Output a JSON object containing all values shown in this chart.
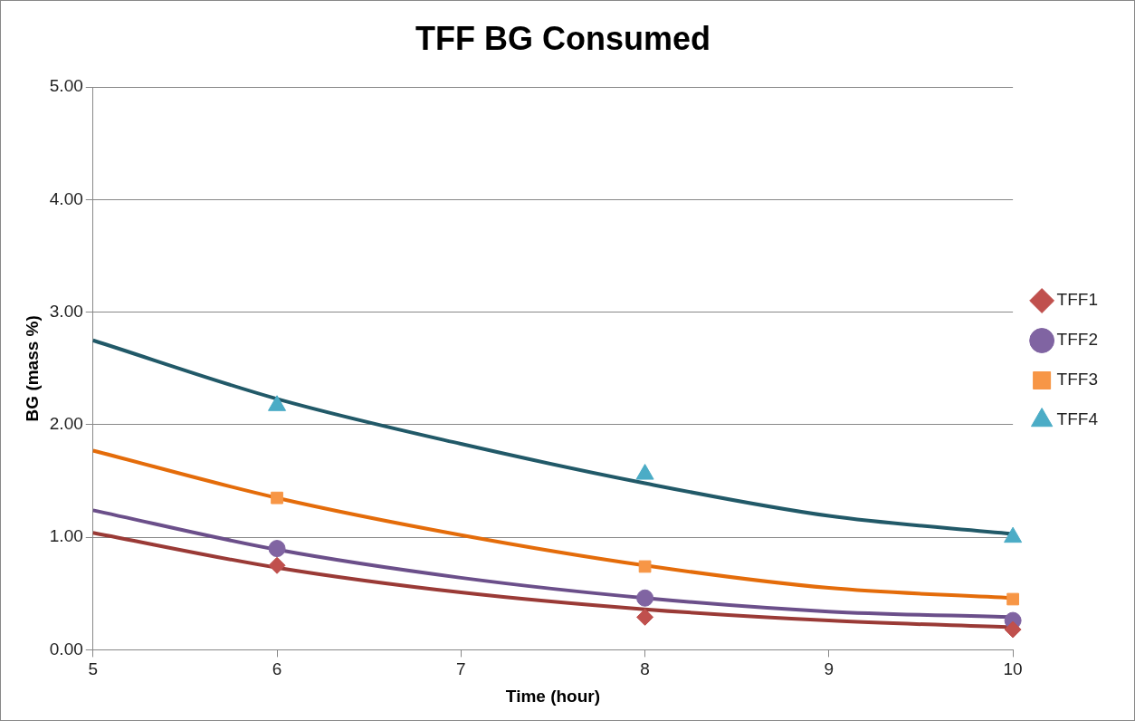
{
  "chart_data": {
    "type": "scatter",
    "title": "TFF BG Consumed",
    "xlabel": "Time (hour)",
    "ylabel": "BG (mass %)",
    "xlim": [
      5,
      10
    ],
    "xticks": [
      5,
      6,
      7,
      8,
      9,
      10
    ],
    "ylim": [
      0,
      5
    ],
    "yticks": [
      {
        "value": 0,
        "label": "0.00"
      },
      {
        "value": 1,
        "label": "1.00"
      },
      {
        "value": 2,
        "label": "2.00"
      },
      {
        "value": 3,
        "label": "3.00"
      },
      {
        "value": 4,
        "label": "4.00"
      },
      {
        "value": 5,
        "label": "5.00"
      }
    ],
    "grid": "y",
    "legend": "right",
    "series": [
      {
        "type": "line",
        "marker": "none",
        "color": "#9a3a36",
        "x": [
          5,
          6,
          7,
          8,
          9,
          10
        ],
        "values": [
          1.04,
          0.73,
          0.51,
          0.36,
          0.26,
          0.2
        ]
      },
      {
        "type": "line",
        "marker": "none",
        "color": "#6b4f8a",
        "x": [
          5,
          6,
          7,
          8,
          9,
          10
        ],
        "values": [
          1.24,
          0.89,
          0.64,
          0.46,
          0.34,
          0.29
        ]
      },
      {
        "type": "line",
        "marker": "none",
        "color": "#e46c0a",
        "x": [
          5,
          6,
          7,
          8,
          9,
          10
        ],
        "values": [
          1.77,
          1.35,
          1.02,
          0.75,
          0.55,
          0.46
        ]
      },
      {
        "type": "line",
        "marker": "none",
        "color": "#215968",
        "x": [
          5,
          6,
          7,
          8,
          9,
          10
        ],
        "values": [
          2.75,
          2.23,
          1.83,
          1.48,
          1.19,
          1.03
        ]
      },
      {
        "name": "TFF1",
        "marker": "diamond",
        "color": "#c0504d",
        "x": [
          6,
          8,
          10
        ],
        "values": [
          0.75,
          0.29,
          0.18
        ]
      },
      {
        "name": "TFF2",
        "marker": "circle",
        "color": "#8064a2",
        "x": [
          6,
          8,
          10
        ],
        "values": [
          0.9,
          0.46,
          0.26
        ]
      },
      {
        "name": "TFF3",
        "marker": "square",
        "color": "#f79646",
        "x": [
          6,
          8,
          10
        ],
        "values": [
          1.35,
          0.74,
          0.45
        ]
      },
      {
        "name": "TFF4",
        "marker": "triangle",
        "color": "#4bacc6",
        "x": [
          6,
          8,
          10
        ],
        "values": [
          2.17,
          1.56,
          1.0
        ]
      }
    ]
  }
}
